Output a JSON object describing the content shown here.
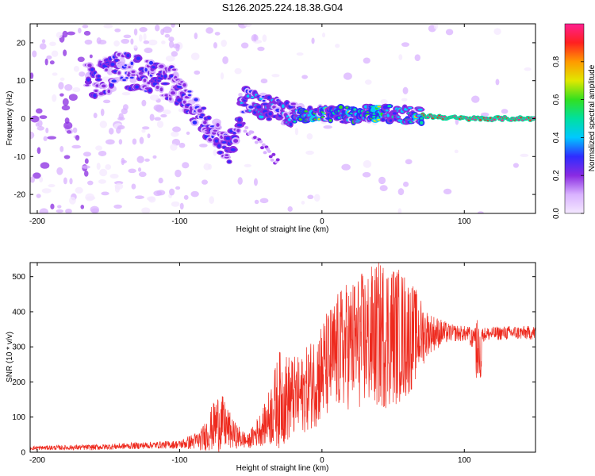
{
  "title": "S126.2025.224.18.38.G04",
  "colors": {
    "snr_line": "#ee2a1e",
    "background": "#ffffff",
    "axes": "#000000"
  },
  "chart_data": [
    {
      "type": "heatmap",
      "name": "spectrogram",
      "xlabel": "Height of straight line (km)",
      "ylabel": "Frequency (Hz)",
      "xlim": [
        -205,
        150
      ],
      "ylim": [
        -25,
        25
      ],
      "xticks": [
        -200,
        -100,
        0,
        100
      ],
      "yticks": [
        -20,
        -10,
        0,
        10,
        20
      ],
      "colorbar": {
        "label": "Normalized spectral amplitude",
        "range": [
          0.0,
          1.0
        ],
        "ticks": [
          0.0,
          0.2,
          0.4,
          0.6,
          0.8
        ],
        "colormap": [
          "#f4e8ff",
          "#d9b2ff",
          "#8a2be2",
          "#2f2cff",
          "#00c8ff",
          "#00e0a0",
          "#32e020",
          "#e0e800",
          "#ff9a00",
          "#ff2020",
          "#ff2090"
        ]
      },
      "ridge": {
        "description_points": [
          {
            "x": -160,
            "y": 10
          },
          {
            "x": -140,
            "y": 13
          },
          {
            "x": -120,
            "y": 11
          },
          {
            "x": -105,
            "y": 9
          },
          {
            "x": -95,
            "y": 5
          },
          {
            "x": -85,
            "y": 0
          },
          {
            "x": -75,
            "y": -4
          },
          {
            "x": -65,
            "y": -9
          },
          {
            "x": -55,
            "y": 5
          },
          {
            "x": -40,
            "y": 3
          },
          {
            "x": -20,
            "y": 1
          },
          {
            "x": 0,
            "y": 1.5
          },
          {
            "x": 20,
            "y": 1
          },
          {
            "x": 40,
            "y": 1.5
          },
          {
            "x": 60,
            "y": 1
          },
          {
            "x": 80,
            "y": 0.5
          },
          {
            "x": 100,
            "y": 0
          },
          {
            "x": 150,
            "y": 0
          }
        ]
      }
    },
    {
      "type": "line",
      "name": "snr",
      "xlabel": "Height of straight line (km)",
      "ylabel": "SNR (10 * v/v)",
      "xlim": [
        -205,
        150
      ],
      "ylim": [
        0,
        540
      ],
      "xticks": [
        -200,
        -100,
        0,
        100
      ],
      "yticks": [
        0,
        100,
        200,
        300,
        400,
        500
      ],
      "envelope": [
        {
          "x": -205,
          "mean": 12,
          "spread": 6
        },
        {
          "x": -160,
          "mean": 14,
          "spread": 8
        },
        {
          "x": -120,
          "mean": 20,
          "spread": 10
        },
        {
          "x": -100,
          "mean": 22,
          "spread": 12
        },
        {
          "x": -85,
          "mean": 35,
          "spread": 30
        },
        {
          "x": -72,
          "mean": 90,
          "spread": 90
        },
        {
          "x": -62,
          "mean": 50,
          "spread": 40
        },
        {
          "x": -52,
          "mean": 30,
          "spread": 20
        },
        {
          "x": -40,
          "mean": 80,
          "spread": 60
        },
        {
          "x": -30,
          "mean": 150,
          "spread": 140
        },
        {
          "x": -15,
          "mean": 160,
          "spread": 110
        },
        {
          "x": 0,
          "mean": 230,
          "spread": 150
        },
        {
          "x": 15,
          "mean": 300,
          "spread": 180
        },
        {
          "x": 30,
          "mean": 320,
          "spread": 200
        },
        {
          "x": 45,
          "mean": 340,
          "spread": 220
        },
        {
          "x": 60,
          "mean": 330,
          "spread": 180
        },
        {
          "x": 75,
          "mean": 340,
          "spread": 60
        },
        {
          "x": 90,
          "mean": 340,
          "spread": 25
        },
        {
          "x": 110,
          "mean": 335,
          "spread": 20
        },
        {
          "x": 130,
          "mean": 340,
          "spread": 20
        },
        {
          "x": 150,
          "mean": 340,
          "spread": 20
        }
      ]
    }
  ]
}
